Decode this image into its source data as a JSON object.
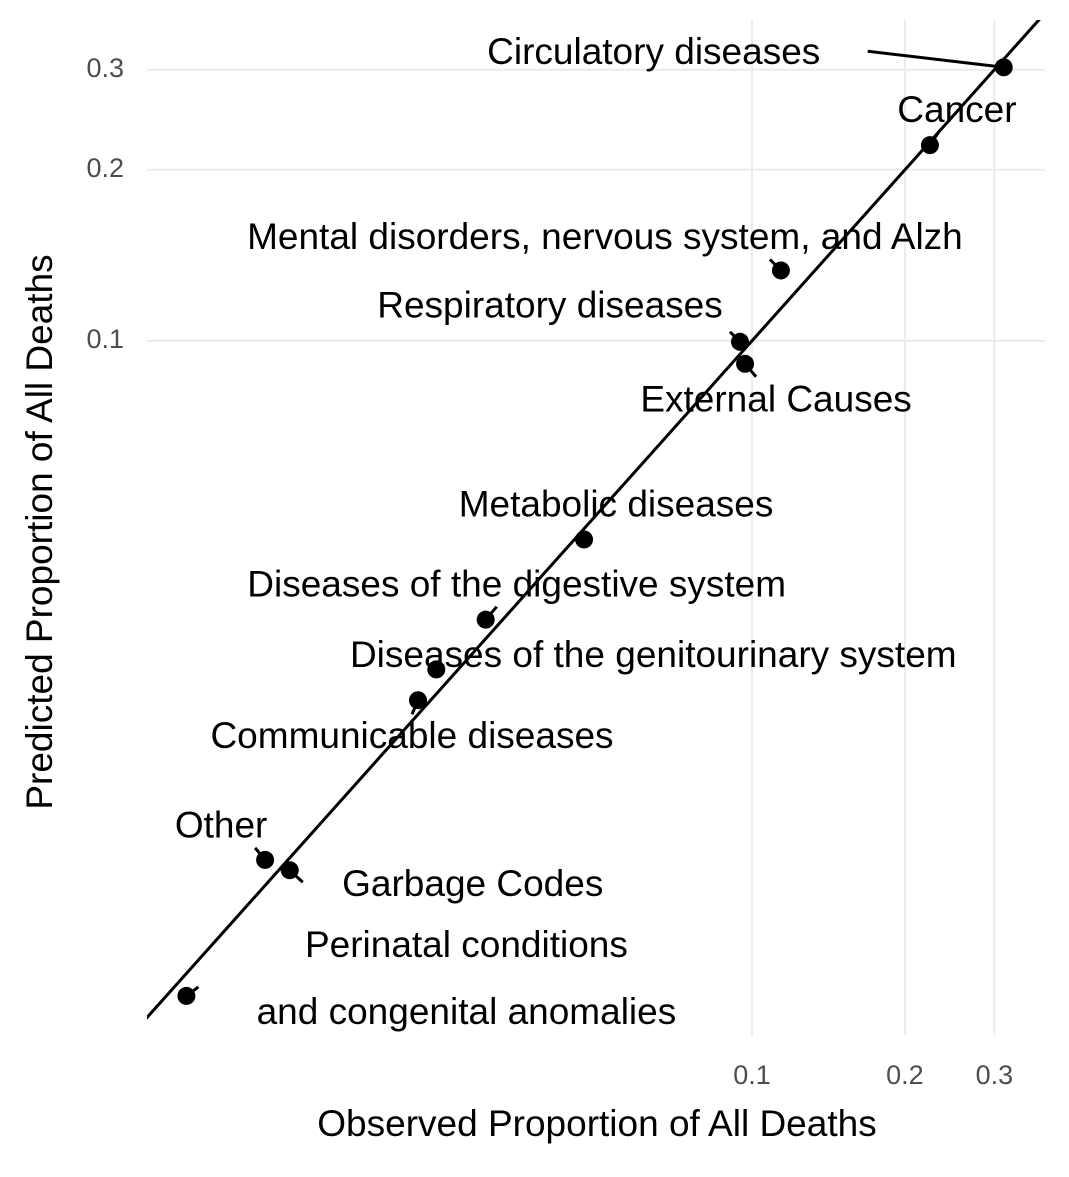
{
  "chart_data": {
    "type": "scatter",
    "xlabel": "Observed Proportion of All Deaths",
    "ylabel": "Predicted Proportion of All Deaths",
    "log_x": true,
    "log_y": true,
    "grid": true,
    "identity_line": true,
    "color": "#000000",
    "xlim": [
      0.00644,
      0.3774
    ],
    "ylim": [
      0.006,
      0.367
    ],
    "xticks": [
      0.1,
      0.2,
      0.3
    ],
    "yticks": [
      0.1,
      0.2,
      0.3
    ],
    "labels": [
      "Circulatory diseases",
      "Cancer",
      "Mental disorders, nervous system, and Alzh",
      "Respiratory diseases",
      "External Causes",
      "Metabolic diseases",
      "Diseases of the digestive system",
      "Diseases of the genitourinary system",
      "Communicable diseases",
      "Other",
      "Garbage Codes",
      "Perinatal conditions\nand congenital anomalies"
    ],
    "x": [
      0.313,
      0.224,
      0.114,
      0.0947,
      0.0969,
      0.0467,
      0.0299,
      0.0239,
      0.022,
      0.011,
      0.0123,
      0.0077
    ],
    "y": [
      0.303,
      0.221,
      0.133,
      0.0996,
      0.0911,
      0.0447,
      0.0323,
      0.0264,
      0.0233,
      0.0122,
      0.0117,
      0.00703
    ]
  }
}
